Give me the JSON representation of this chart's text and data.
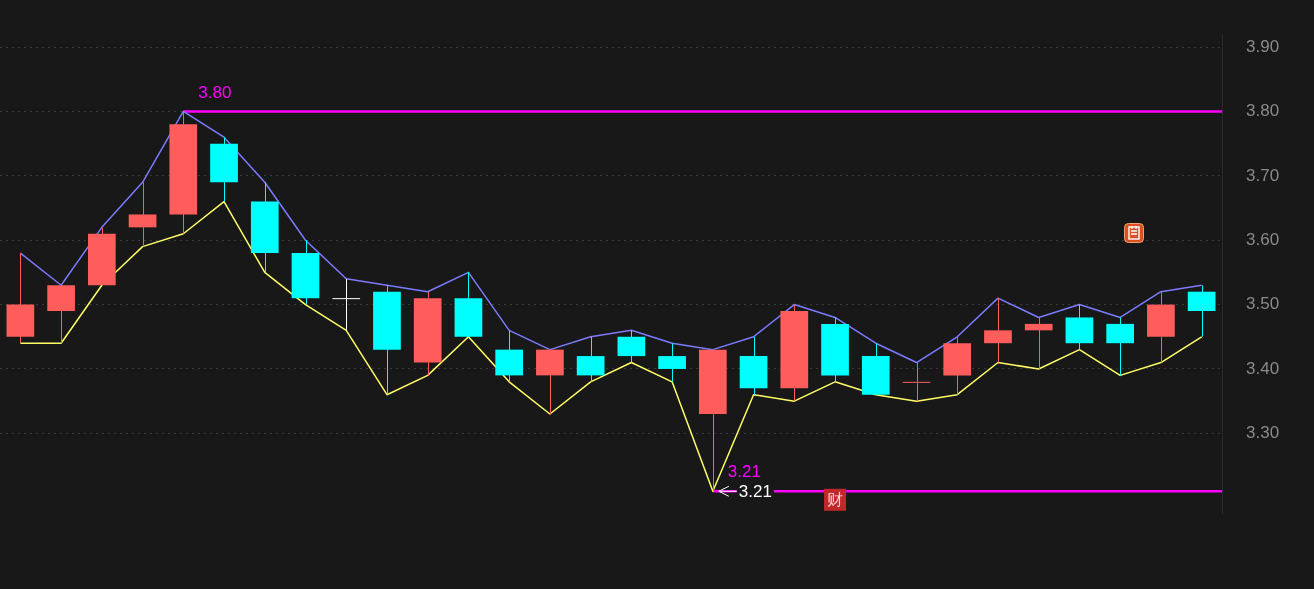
{
  "chart_data": {
    "type": "candlestick",
    "categories": [
      null,
      null,
      null,
      null,
      null,
      null,
      null,
      null,
      null,
      null,
      null,
      null,
      null,
      null,
      null,
      null,
      null,
      null,
      null,
      null,
      null,
      null,
      null,
      null,
      null,
      null,
      null,
      null,
      null,
      null
    ],
    "ohlc": [
      [
        3.45,
        3.58,
        3.44,
        3.5
      ],
      [
        3.49,
        3.53,
        3.44,
        3.53
      ],
      [
        3.53,
        3.62,
        3.53,
        3.61
      ],
      [
        3.62,
        3.69,
        3.59,
        3.64
      ],
      [
        3.64,
        3.8,
        3.61,
        3.78
      ],
      [
        3.75,
        3.76,
        3.66,
        3.69
      ],
      [
        3.66,
        3.69,
        3.55,
        3.58
      ],
      [
        3.58,
        3.6,
        3.5,
        3.51
      ],
      [
        3.51,
        3.54,
        3.46,
        3.51
      ],
      [
        3.52,
        3.53,
        3.36,
        3.43
      ],
      [
        3.41,
        3.52,
        3.39,
        3.51
      ],
      [
        3.51,
        3.55,
        3.45,
        3.45
      ],
      [
        3.43,
        3.46,
        3.38,
        3.39
      ],
      [
        3.39,
        3.43,
        3.33,
        3.43
      ],
      [
        3.42,
        3.45,
        3.38,
        3.39
      ],
      [
        3.45,
        3.46,
        3.41,
        3.42
      ],
      [
        3.42,
        3.44,
        3.38,
        3.4
      ],
      [
        3.33,
        3.43,
        3.21,
        3.43
      ],
      [
        3.42,
        3.45,
        3.36,
        3.37
      ],
      [
        3.37,
        3.5,
        3.35,
        3.49
      ],
      [
        3.47,
        3.48,
        3.38,
        3.39
      ],
      [
        3.42,
        3.44,
        3.36,
        3.36
      ],
      [
        3.38,
        3.41,
        3.35,
        3.38
      ],
      [
        3.39,
        3.45,
        3.36,
        3.44
      ],
      [
        3.44,
        3.51,
        3.41,
        3.46
      ],
      [
        3.46,
        3.48,
        3.4,
        3.47
      ],
      [
        3.48,
        3.5,
        3.43,
        3.44
      ],
      [
        3.47,
        3.48,
        3.39,
        3.44
      ],
      [
        3.45,
        3.52,
        3.41,
        3.5
      ],
      [
        3.52,
        3.53,
        3.45,
        3.49
      ]
    ],
    "colors": [
      "#ff5c5c",
      "#ff5c5c",
      "#ff5c5c",
      "#ff5c5c",
      "#ff5c5c",
      "#00ffff",
      "#00ffff",
      "#00ffff",
      "#ffffff",
      "#00ffff",
      "#ff5c5c",
      "#00ffff",
      "#00ffff",
      "#ff5c5c",
      "#00ffff",
      "#00ffff",
      "#00ffff",
      "#ff5c5c",
      "#00ffff",
      "#ff5c5c",
      "#00ffff",
      "#00ffff",
      "#ff5c5c",
      "#ff5c5c",
      "#ff5c5c",
      "#ff5c5c",
      "#00ffff",
      "#00ffff",
      "#ff5c5c",
      "#00ffff"
    ],
    "series": [
      {
        "type": "line",
        "color": "#7b7bff",
        "values": [
          3.58,
          3.53,
          3.62,
          3.69,
          3.8,
          3.76,
          3.69,
          3.6,
          3.54,
          3.53,
          3.52,
          3.55,
          3.46,
          3.43,
          3.45,
          3.46,
          3.44,
          3.43,
          3.45,
          3.5,
          3.48,
          3.44,
          3.41,
          3.45,
          3.51,
          3.48,
          3.5,
          3.48,
          3.52,
          3.53
        ]
      },
      {
        "type": "line",
        "color": "#ffff66",
        "values": [
          3.44,
          3.44,
          3.53,
          3.59,
          3.61,
          3.66,
          3.55,
          3.5,
          3.46,
          3.36,
          3.39,
          3.45,
          3.38,
          3.33,
          3.38,
          3.41,
          3.38,
          3.21,
          3.36,
          3.35,
          3.38,
          3.36,
          3.35,
          3.36,
          3.41,
          3.4,
          3.43,
          3.39,
          3.41,
          3.45
        ]
      }
    ],
    "ylim": [
      3.175,
      3.92
    ],
    "yticks": [
      {
        "value": 3.3,
        "label": "3.30"
      },
      {
        "value": 3.4,
        "label": "3.40"
      },
      {
        "value": 3.5,
        "label": "3.50"
      },
      {
        "value": 3.6,
        "label": "3.60"
      },
      {
        "value": 3.7,
        "label": "3.70"
      },
      {
        "value": 3.8,
        "label": "3.80"
      },
      {
        "value": 3.9,
        "label": "3.90"
      }
    ],
    "grid": "y",
    "legend": false,
    "ref_lines": [
      {
        "axis": "y",
        "value": 3.8,
        "label": "3.80",
        "color": "#ff00ff"
      },
      {
        "axis": "y",
        "value": 3.21,
        "label": "3.21",
        "color": "#ff00ff"
      }
    ],
    "annotations": [
      {
        "text": "3.21",
        "y": 3.21
      },
      "财"
    ]
  }
}
